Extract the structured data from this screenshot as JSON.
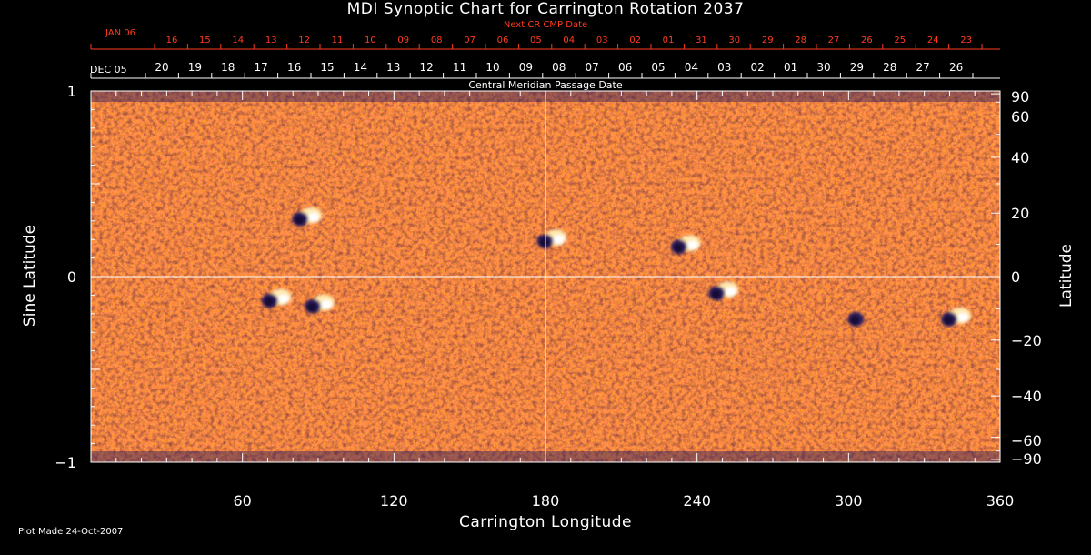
{
  "chart_data": {
    "type": "heatmap",
    "title": "MDI Synoptic Chart for Carrington Rotation 2037",
    "xlabel": "Carrington Longitude",
    "ylabel_left": "Sine Latitude",
    "ylabel_right": "Latitude",
    "xlim": [
      0,
      360
    ],
    "ylim": [
      -1,
      1
    ],
    "x_ticks": [
      60,
      120,
      180,
      240,
      300,
      360
    ],
    "y_ticks_left": [
      {
        "value": 1,
        "label": "1"
      },
      {
        "value": 0,
        "label": "0"
      },
      {
        "value": -1,
        "label": "−1"
      }
    ],
    "y_ticks_right": [
      90,
      60,
      40,
      20,
      0,
      -20,
      -40,
      -60,
      -90
    ],
    "grid": "crosshair at 180° longitude and 0 sine latitude",
    "colors": {
      "background": "#000000",
      "field": "#ff5a00",
      "positive_polarity": "#ffffff",
      "negative_polarity": "#2a1a5e",
      "axes": "#ffffff",
      "upper_date_axis": "#ff3c1e"
    },
    "next_cr_cmp_date_label": "Next CR CMP Date",
    "next_cr_cmp_dates": [
      "16",
      "15",
      "14",
      "13",
      "12",
      "11",
      "10",
      "09",
      "08",
      "07",
      "06",
      "05",
      "04",
      "03",
      "02",
      "01",
      "31",
      "30",
      "29",
      "28",
      "27",
      "26",
      "25",
      "24",
      "23"
    ],
    "next_cr_first_label": "JAN 06",
    "cmp_date_label": "Central Meridian Passage Date",
    "cmp_first_label": "DEC 05",
    "cmp_dates": [
      "20",
      "19",
      "18",
      "17",
      "16",
      "15",
      "14",
      "13",
      "12",
      "11",
      "10",
      "09",
      "08",
      "07",
      "06",
      "05",
      "04",
      "03",
      "02",
      "01",
      "30",
      "29",
      "28",
      "27",
      "26"
    ],
    "active_regions": [
      {
        "lon": 85,
        "sinlat": 0.32,
        "polarity": "bipolar"
      },
      {
        "lon": 90,
        "sinlat": -0.15,
        "polarity": "bipolar"
      },
      {
        "lon": 73,
        "sinlat": -0.12,
        "polarity": "bipolar"
      },
      {
        "lon": 182,
        "sinlat": 0.2,
        "polarity": "bipolar"
      },
      {
        "lon": 235,
        "sinlat": 0.17,
        "polarity": "bipolar"
      },
      {
        "lon": 250,
        "sinlat": -0.08,
        "polarity": "bipolar"
      },
      {
        "lon": 305,
        "sinlat": -0.22,
        "polarity": "negative"
      },
      {
        "lon": 342,
        "sinlat": -0.22,
        "polarity": "bipolar"
      }
    ]
  },
  "footer": "Plot Made 24-Oct-2007"
}
